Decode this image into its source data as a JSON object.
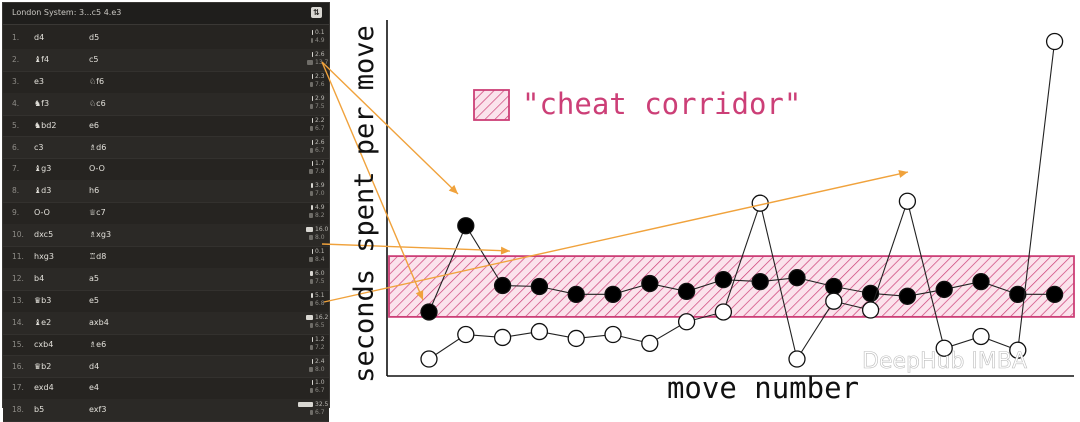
{
  "panel": {
    "title": "London System: 3...c5 4.e3",
    "header_icon": "flip-board-icon",
    "moves": [
      {
        "num": "1.",
        "white": "d4",
        "white_piece": "",
        "black": "d5",
        "black_piece": "",
        "white_time": "0.1",
        "black_time": "4.9"
      },
      {
        "num": "2.",
        "white": "f4",
        "white_piece": "♝",
        "black": "c5",
        "black_piece": "",
        "white_time": "2.6",
        "black_time": "13.7"
      },
      {
        "num": "3.",
        "white": "e3",
        "white_piece": "",
        "black": "f6",
        "black_piece": "♘",
        "white_time": "2.3",
        "black_time": "7.6"
      },
      {
        "num": "4.",
        "white": "f3",
        "white_piece": "♞",
        "black": "c6",
        "black_piece": "♘",
        "white_time": "2.9",
        "black_time": "7.5"
      },
      {
        "num": "5.",
        "white": "bd2",
        "white_piece": "♞",
        "black": "e6",
        "black_piece": "",
        "white_time": "2.2",
        "black_time": "6.7"
      },
      {
        "num": "6.",
        "white": "c3",
        "white_piece": "",
        "black": "d6",
        "black_piece": "♗",
        "white_time": "2.6",
        "black_time": "6.7"
      },
      {
        "num": "7.",
        "white": "g3",
        "white_piece": "♝",
        "black": "O-O",
        "black_piece": "",
        "white_time": "1.7",
        "black_time": "7.8"
      },
      {
        "num": "8.",
        "white": "d3",
        "white_piece": "♝",
        "black": "h6",
        "black_piece": "",
        "white_time": "3.9",
        "black_time": "7.0"
      },
      {
        "num": "9.",
        "white": "O-O",
        "white_piece": "",
        "black": "c7",
        "black_piece": "♕",
        "white_time": "4.9",
        "black_time": "8.2"
      },
      {
        "num": "10.",
        "white": "dxc5",
        "white_piece": "",
        "black": "xg3",
        "black_piece": "♗",
        "white_time": "16.0",
        "black_time": "8.0"
      },
      {
        "num": "11.",
        "white": "hxg3",
        "white_piece": "",
        "black": "d8",
        "black_piece": "♖",
        "white_time": "0.1",
        "black_time": "8.4"
      },
      {
        "num": "12.",
        "white": "b4",
        "white_piece": "",
        "black": "a5",
        "black_piece": "",
        "white_time": "6.0",
        "black_time": "7.5"
      },
      {
        "num": "13.",
        "white": "b3",
        "white_piece": "♛",
        "black": "e5",
        "black_piece": "",
        "white_time": "5.1",
        "black_time": "6.8"
      },
      {
        "num": "14.",
        "white": "e2",
        "white_piece": "♝",
        "black": "axb4",
        "black_piece": "",
        "white_time": "16.2",
        "black_time": "6.5"
      },
      {
        "num": "15.",
        "white": "cxb4",
        "white_piece": "",
        "black": "e6",
        "black_piece": "♗",
        "white_time": "1.2",
        "black_time": "7.2"
      },
      {
        "num": "16.",
        "white": "b2",
        "white_piece": "♛",
        "black": "d4",
        "black_piece": "",
        "white_time": "2.4",
        "black_time": "8.0"
      },
      {
        "num": "17.",
        "white": "exd4",
        "white_piece": "",
        "black": "e4",
        "black_piece": "",
        "white_time": "1.0",
        "black_time": "6.7"
      },
      {
        "num": "18.",
        "white": "b5",
        "white_piece": "",
        "black": "exf3",
        "black_piece": "",
        "white_time": "32.5",
        "black_time": "6.7"
      }
    ]
  },
  "chart_data": {
    "type": "line",
    "title": "",
    "xlabel": "move number",
    "ylabel": "seconds spent per move",
    "legend": {
      "label": "\"cheat corridor\"",
      "placement": "top-left"
    },
    "corridor": {
      "y_range": [
        4.4,
        10.6
      ],
      "color": "#cc3f77"
    },
    "ylim": [
      0,
      34
    ],
    "series": [
      {
        "color": "#000000",
        "x": [
          1,
          2,
          3,
          4,
          5,
          6,
          7,
          8,
          9,
          10,
          11,
          12,
          13,
          14,
          15,
          16,
          17,
          18
        ],
        "values": [
          4.9,
          13.7,
          7.6,
          7.5,
          6.7,
          6.7,
          7.8,
          7.0,
          8.2,
          8.0,
          8.4,
          7.5,
          6.8,
          6.5,
          7.2,
          8.0,
          6.7,
          6.7
        ]
      },
      {
        "color": "#ffffff",
        "x": [
          1,
          2,
          3,
          4,
          5,
          6,
          7,
          8,
          9,
          10,
          11,
          12,
          13,
          14,
          15,
          16,
          17,
          18
        ],
        "values": [
          0.1,
          2.6,
          2.3,
          2.9,
          2.2,
          2.6,
          1.7,
          3.9,
          4.9,
          16.0,
          0.1,
          6.0,
          5.1,
          16.2,
          1.2,
          2.4,
          1.0,
          32.5
        ]
      }
    ],
    "watermark": "DeepHub IMBA"
  }
}
